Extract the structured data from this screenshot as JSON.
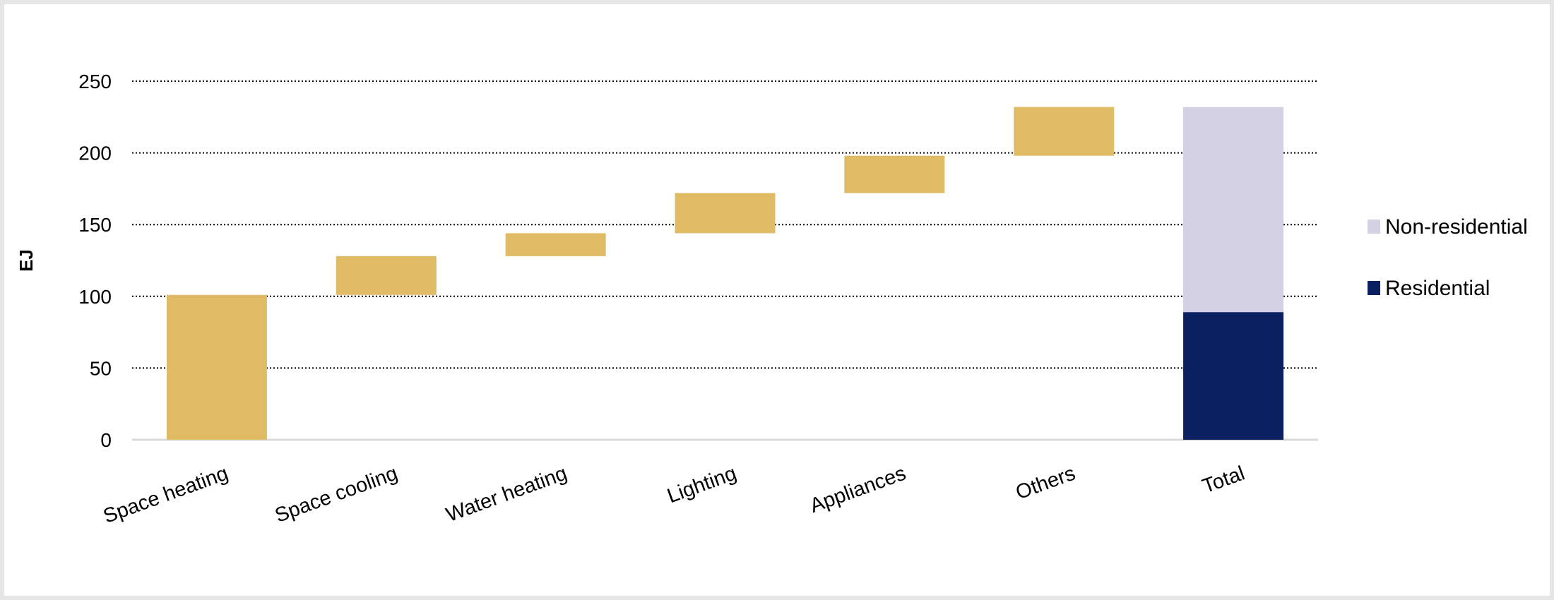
{
  "chart_data": {
    "type": "bar",
    "subtype": "waterfall",
    "ylabel": "EJ",
    "xlabel": "",
    "title": "",
    "ylim": [
      0,
      250
    ],
    "yticks": [
      0,
      50,
      100,
      150,
      200,
      250
    ],
    "grid": true,
    "legend_position": "right",
    "categories": [
      "Space heating",
      "Space cooling",
      "Water heating",
      "Lighting",
      "Appliances",
      "Others",
      "Total"
    ],
    "steps": [
      {
        "category": "Space heating",
        "value": 101
      },
      {
        "category": "Space cooling",
        "value": 27
      },
      {
        "category": "Water heating",
        "value": 16
      },
      {
        "category": "Lighting",
        "value": 28
      },
      {
        "category": "Appliances",
        "value": 26
      },
      {
        "category": "Others",
        "value": 34
      }
    ],
    "total": {
      "category": "Total",
      "series": [
        {
          "name": "Residential",
          "value": 89
        },
        {
          "name": "Non-residential",
          "value": 143
        }
      ]
    },
    "legend": [
      "Non-residential",
      "Residential"
    ],
    "colors": {
      "step": "#e0bb66",
      "Residential": "#0b2060",
      "Non-residential": "#d3d1e3",
      "grid": "#000000",
      "axis": "#d9d9d9"
    }
  }
}
